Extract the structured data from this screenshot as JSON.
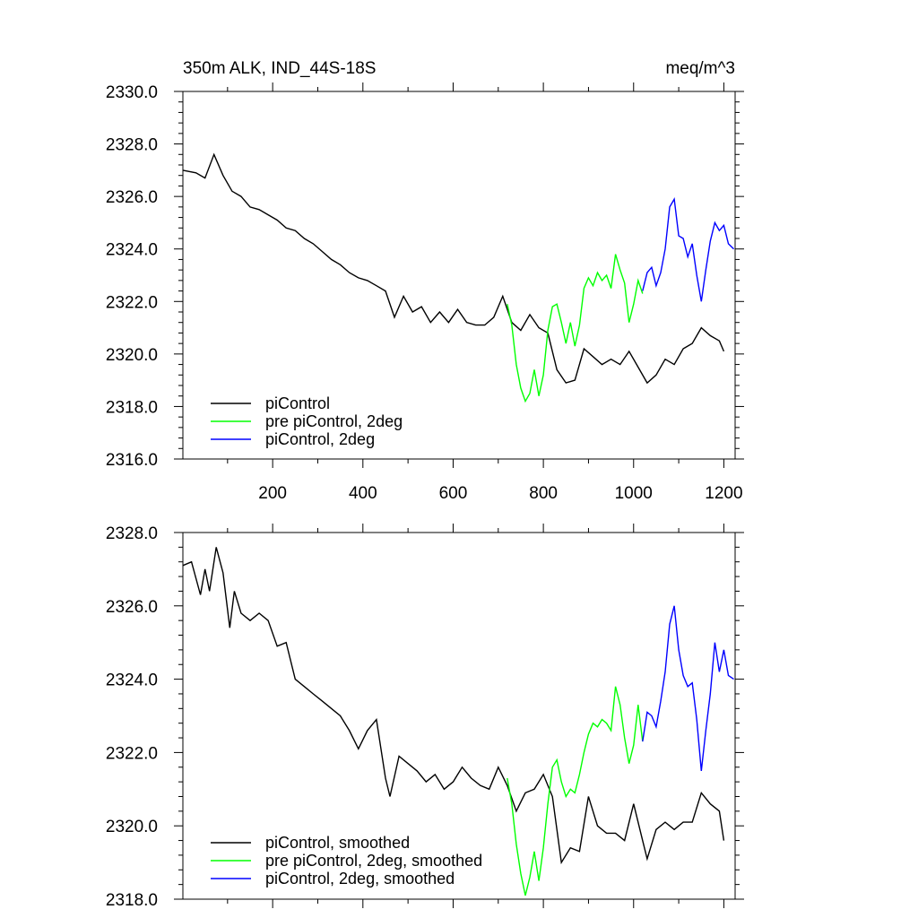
{
  "chart_data": [
    {
      "type": "line",
      "title_left": "350m ALK, IND_44S-18S",
      "title_right": "meq/m^3",
      "xlim": [
        1,
        1225
      ],
      "ylim": [
        2316.0,
        2330.0
      ],
      "x_ticks": [
        200,
        400,
        600,
        800,
        1000,
        1200
      ],
      "x_tick_labels": [
        "200",
        "400",
        "600",
        "800",
        "1000",
        "1200"
      ],
      "y_ticks": [
        2316.0,
        2318.0,
        2320.0,
        2322.0,
        2324.0,
        2326.0,
        2328.0,
        2330.0
      ],
      "y_tick_labels": [
        "2316.0",
        "2318.0",
        "2320.0",
        "2322.0",
        "2324.0",
        "2326.0",
        "2328.0",
        "2330.0"
      ],
      "grid": false,
      "legend_position": "bottom-left",
      "series": [
        {
          "name": "piControl",
          "color": "#000000",
          "points": [
            [
              1,
              2327.0
            ],
            [
              30,
              2326.9
            ],
            [
              50,
              2326.7
            ],
            [
              70,
              2327.6
            ],
            [
              90,
              2326.8
            ],
            [
              110,
              2326.2
            ],
            [
              130,
              2326.0
            ],
            [
              150,
              2325.6
            ],
            [
              170,
              2325.5
            ],
            [
              190,
              2325.3
            ],
            [
              210,
              2325.1
            ],
            [
              230,
              2324.8
            ],
            [
              250,
              2324.7
            ],
            [
              270,
              2324.4
            ],
            [
              290,
              2324.2
            ],
            [
              310,
              2323.9
            ],
            [
              330,
              2323.6
            ],
            [
              350,
              2323.4
            ],
            [
              370,
              2323.1
            ],
            [
              390,
              2322.9
            ],
            [
              410,
              2322.8
            ],
            [
              430,
              2322.6
            ],
            [
              450,
              2322.4
            ],
            [
              470,
              2321.4
            ],
            [
              490,
              2322.2
            ],
            [
              510,
              2321.6
            ],
            [
              530,
              2321.8
            ],
            [
              550,
              2321.2
            ],
            [
              570,
              2321.6
            ],
            [
              590,
              2321.2
            ],
            [
              610,
              2321.7
            ],
            [
              630,
              2321.2
            ],
            [
              650,
              2321.1
            ],
            [
              670,
              2321.1
            ],
            [
              690,
              2321.4
            ],
            [
              710,
              2322.2
            ],
            [
              730,
              2321.2
            ],
            [
              750,
              2320.9
            ],
            [
              770,
              2321.5
            ],
            [
              790,
              2321.0
            ],
            [
              810,
              2320.8
            ],
            [
              830,
              2319.4
            ],
            [
              850,
              2318.9
            ],
            [
              870,
              2319.0
            ],
            [
              890,
              2320.2
            ],
            [
              910,
              2319.9
            ],
            [
              930,
              2319.6
            ],
            [
              950,
              2319.8
            ],
            [
              970,
              2319.6
            ],
            [
              990,
              2320.1
            ],
            [
              1010,
              2319.5
            ],
            [
              1030,
              2318.9
            ],
            [
              1050,
              2319.2
            ],
            [
              1070,
              2319.8
            ],
            [
              1090,
              2319.6
            ],
            [
              1110,
              2320.2
            ],
            [
              1130,
              2320.4
            ],
            [
              1150,
              2321.0
            ],
            [
              1170,
              2320.7
            ],
            [
              1190,
              2320.5
            ],
            [
              1200,
              2320.1
            ]
          ]
        },
        {
          "name": "pre piControl, 2deg",
          "color": "#00ff00",
          "points": [
            [
              720,
              2321.9
            ],
            [
              730,
              2321.1
            ],
            [
              740,
              2319.6
            ],
            [
              750,
              2318.7
            ],
            [
              760,
              2318.2
            ],
            [
              770,
              2318.5
            ],
            [
              780,
              2319.4
            ],
            [
              790,
              2318.4
            ],
            [
              800,
              2319.2
            ],
            [
              810,
              2320.9
            ],
            [
              820,
              2321.8
            ],
            [
              830,
              2321.9
            ],
            [
              840,
              2321.2
            ],
            [
              850,
              2320.4
            ],
            [
              860,
              2321.2
            ],
            [
              870,
              2320.3
            ],
            [
              880,
              2321.1
            ],
            [
              890,
              2322.5
            ],
            [
              900,
              2322.9
            ],
            [
              910,
              2322.6
            ],
            [
              920,
              2323.1
            ],
            [
              930,
              2322.8
            ],
            [
              940,
              2323.0
            ],
            [
              950,
              2322.5
            ],
            [
              960,
              2323.8
            ],
            [
              970,
              2323.2
            ],
            [
              980,
              2322.7
            ],
            [
              990,
              2321.2
            ],
            [
              1000,
              2321.9
            ],
            [
              1010,
              2322.8
            ],
            [
              1020,
              2322.3
            ]
          ]
        },
        {
          "name": "piControl, 2deg",
          "color": "#0000ff",
          "points": [
            [
              1020,
              2322.4
            ],
            [
              1030,
              2323.1
            ],
            [
              1040,
              2323.3
            ],
            [
              1050,
              2322.6
            ],
            [
              1060,
              2323.1
            ],
            [
              1070,
              2324.0
            ],
            [
              1080,
              2325.6
            ],
            [
              1090,
              2325.9
            ],
            [
              1100,
              2324.5
            ],
            [
              1110,
              2324.4
            ],
            [
              1120,
              2323.7
            ],
            [
              1130,
              2324.2
            ],
            [
              1140,
              2323.0
            ],
            [
              1150,
              2322.0
            ],
            [
              1160,
              2323.2
            ],
            [
              1170,
              2324.3
            ],
            [
              1180,
              2325.0
            ],
            [
              1190,
              2324.7
            ],
            [
              1200,
              2324.9
            ],
            [
              1210,
              2324.2
            ],
            [
              1222,
              2324.0
            ]
          ]
        }
      ]
    },
    {
      "type": "line",
      "xlim": [
        1,
        1225
      ],
      "ylim": [
        2318.0,
        2328.0
      ],
      "y_ticks": [
        2318.0,
        2320.0,
        2322.0,
        2324.0,
        2326.0,
        2328.0
      ],
      "y_tick_labels": [
        "2318.0",
        "2320.0",
        "2322.0",
        "2324.0",
        "2326.0",
        "2328.0"
      ],
      "grid": false,
      "legend_position": "bottom-left",
      "series": [
        {
          "name": "piControl, smoothed",
          "color": "#000000",
          "points": [
            [
              1,
              2327.1
            ],
            [
              20,
              2327.2
            ],
            [
              40,
              2326.3
            ],
            [
              50,
              2327.0
            ],
            [
              60,
              2326.4
            ],
            [
              75,
              2327.6
            ],
            [
              90,
              2326.9
            ],
            [
              105,
              2325.4
            ],
            [
              115,
              2326.4
            ],
            [
              130,
              2325.8
            ],
            [
              150,
              2325.6
            ],
            [
              170,
              2325.8
            ],
            [
              190,
              2325.6
            ],
            [
              210,
              2324.9
            ],
            [
              230,
              2325.0
            ],
            [
              250,
              2324.0
            ],
            [
              270,
              2323.8
            ],
            [
              290,
              2323.6
            ],
            [
              310,
              2323.4
            ],
            [
              330,
              2323.2
            ],
            [
              350,
              2323.0
            ],
            [
              370,
              2322.6
            ],
            [
              390,
              2322.1
            ],
            [
              410,
              2322.6
            ],
            [
              430,
              2322.9
            ],
            [
              450,
              2321.3
            ],
            [
              460,
              2320.8
            ],
            [
              480,
              2321.9
            ],
            [
              500,
              2321.7
            ],
            [
              520,
              2321.5
            ],
            [
              540,
              2321.2
            ],
            [
              560,
              2321.4
            ],
            [
              580,
              2321.0
            ],
            [
              600,
              2321.2
            ],
            [
              620,
              2321.6
            ],
            [
              640,
              2321.3
            ],
            [
              660,
              2321.1
            ],
            [
              680,
              2321.0
            ],
            [
              700,
              2321.6
            ],
            [
              720,
              2321.1
            ],
            [
              740,
              2320.4
            ],
            [
              760,
              2320.9
            ],
            [
              780,
              2321.0
            ],
            [
              800,
              2321.4
            ],
            [
              820,
              2320.8
            ],
            [
              840,
              2319.0
            ],
            [
              860,
              2319.4
            ],
            [
              880,
              2319.3
            ],
            [
              900,
              2320.8
            ],
            [
              920,
              2320.0
            ],
            [
              940,
              2319.8
            ],
            [
              960,
              2319.8
            ],
            [
              980,
              2319.6
            ],
            [
              1000,
              2320.6
            ],
            [
              1020,
              2319.6
            ],
            [
              1030,
              2319.1
            ],
            [
              1050,
              2319.9
            ],
            [
              1070,
              2320.1
            ],
            [
              1090,
              2319.9
            ],
            [
              1110,
              2320.1
            ],
            [
              1130,
              2320.1
            ],
            [
              1150,
              2320.9
            ],
            [
              1170,
              2320.6
            ],
            [
              1190,
              2320.4
            ],
            [
              1200,
              2319.6
            ]
          ]
        },
        {
          "name": "pre piControl, 2deg, smoothed",
          "color": "#00ff00",
          "points": [
            [
              720,
              2321.3
            ],
            [
              730,
              2320.6
            ],
            [
              740,
              2319.5
            ],
            [
              750,
              2318.7
            ],
            [
              760,
              2318.1
            ],
            [
              770,
              2318.6
            ],
            [
              780,
              2319.3
            ],
            [
              790,
              2318.5
            ],
            [
              800,
              2319.4
            ],
            [
              810,
              2320.6
            ],
            [
              820,
              2321.6
            ],
            [
              830,
              2321.8
            ],
            [
              840,
              2321.2
            ],
            [
              850,
              2320.8
            ],
            [
              860,
              2321.0
            ],
            [
              870,
              2320.9
            ],
            [
              880,
              2321.4
            ],
            [
              890,
              2322.0
            ],
            [
              900,
              2322.5
            ],
            [
              910,
              2322.8
            ],
            [
              920,
              2322.7
            ],
            [
              930,
              2322.9
            ],
            [
              940,
              2322.8
            ],
            [
              950,
              2322.6
            ],
            [
              960,
              2323.8
            ],
            [
              970,
              2323.3
            ],
            [
              980,
              2322.4
            ],
            [
              990,
              2321.7
            ],
            [
              1000,
              2322.2
            ],
            [
              1010,
              2323.3
            ],
            [
              1020,
              2322.3
            ]
          ]
        },
        {
          "name": "piControl, 2deg, smoothed",
          "color": "#0000ff",
          "points": [
            [
              1020,
              2322.3
            ],
            [
              1030,
              2323.1
            ],
            [
              1040,
              2323.0
            ],
            [
              1050,
              2322.7
            ],
            [
              1060,
              2323.4
            ],
            [
              1070,
              2324.2
            ],
            [
              1080,
              2325.5
            ],
            [
              1090,
              2326.0
            ],
            [
              1100,
              2324.8
            ],
            [
              1110,
              2324.1
            ],
            [
              1120,
              2323.8
            ],
            [
              1130,
              2323.9
            ],
            [
              1140,
              2322.9
            ],
            [
              1150,
              2321.5
            ],
            [
              1160,
              2322.6
            ],
            [
              1170,
              2323.6
            ],
            [
              1180,
              2325.0
            ],
            [
              1190,
              2324.2
            ],
            [
              1200,
              2324.8
            ],
            [
              1210,
              2324.1
            ],
            [
              1222,
              2324.0
            ]
          ]
        }
      ]
    }
  ]
}
